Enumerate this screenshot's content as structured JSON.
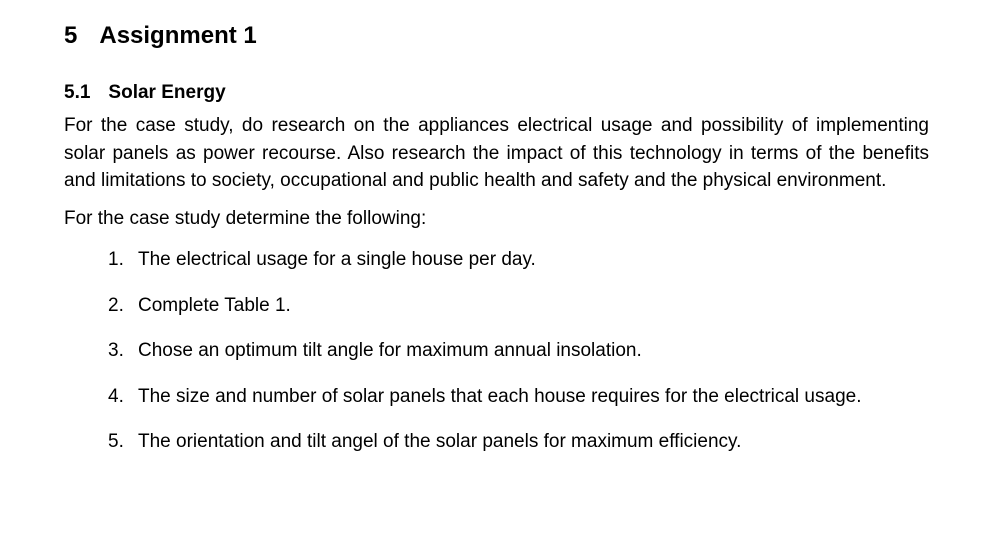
{
  "heading1": {
    "number": "5",
    "text": "Assignment 1"
  },
  "heading2": {
    "number": "5.1",
    "text": "Solar Energy"
  },
  "paragraph1": "For the case study, do research on the appliances electrical usage and possibility of implementing solar panels as power recourse. Also research the impact of this technology in terms of the benefits and limitations to society, occupational and public health and safety and the physical environment.",
  "paragraph2": "For the case study determine the following:",
  "items": [
    "The electrical usage for a single house per day.",
    "Complete Table 1.",
    "Chose an optimum tilt angle for maximum annual insolation.",
    "The size and number of solar panels that each house requires for the electrical usage.",
    "The orientation and tilt angel of the solar panels for maximum efficiency."
  ]
}
